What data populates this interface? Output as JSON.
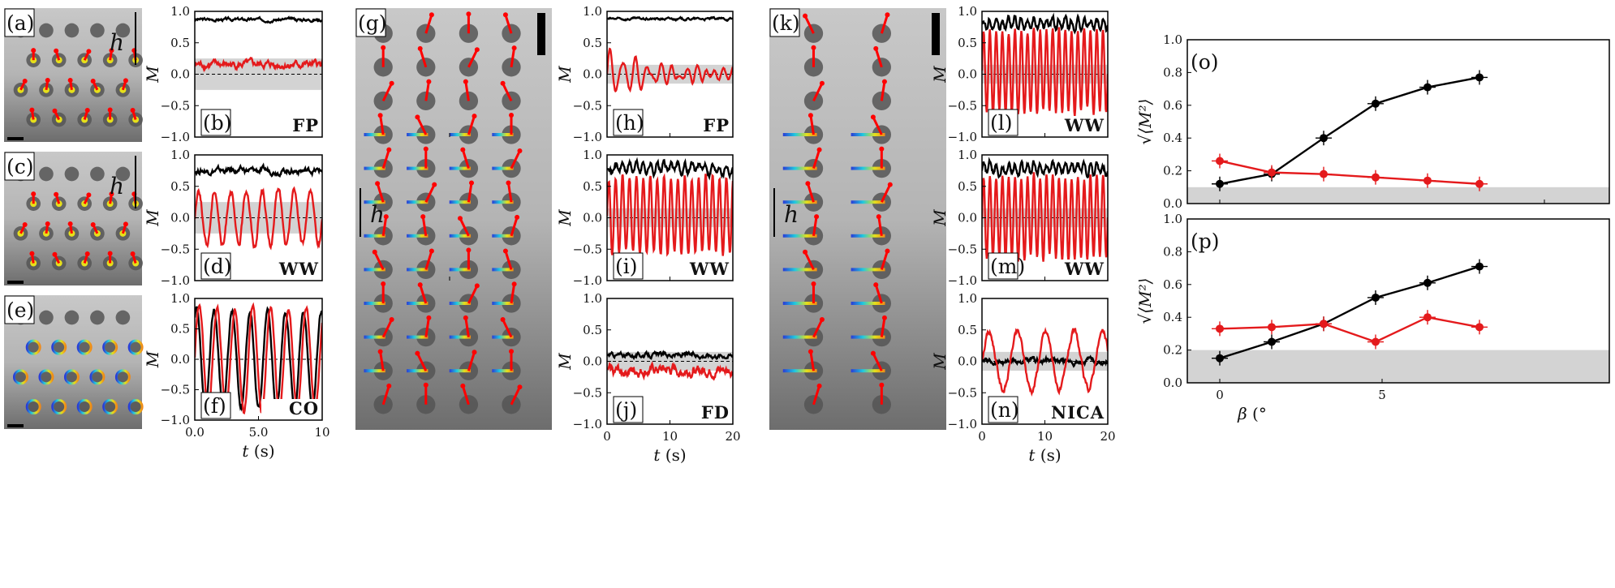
{
  "photos": [
    {
      "label": "(a)",
      "rows": 4,
      "cols": 5,
      "dots": true,
      "hlabel": "h",
      "overlay": "small"
    },
    {
      "label": "(c)",
      "rows": 4,
      "cols": 5,
      "dots": true,
      "hlabel": "h",
      "overlay": "small"
    },
    {
      "label": "(e)",
      "rows": 4,
      "cols": 5,
      "dots": true,
      "hlabel": "",
      "overlay": "ring"
    },
    {
      "label": "(g)",
      "rows": 12,
      "cols": 4,
      "dots": false,
      "hlabel": "h",
      "overlay": "trail"
    },
    {
      "label": "(k)",
      "rows": 12,
      "cols": 2,
      "dots": false,
      "hlabel": "h",
      "overlay": "trail"
    }
  ],
  "colors": {
    "ordered": "#000000",
    "oscillating": "#e41a1c",
    "band": "#d3d3d3"
  },
  "chart_data": [
    {
      "id": "b",
      "type": "line",
      "tag": "(b)",
      "mode": "FP",
      "xlim": [
        0,
        10
      ],
      "ylim": [
        -1,
        1
      ],
      "xticks": [],
      "yticks": [
        "1.0",
        "0.5",
        "0.0",
        "−0.5",
        "−1.0"
      ],
      "ylabel": "M",
      "xlabel": "",
      "band": 0.25,
      "series": [
        {
          "color": "black",
          "kind": "noise",
          "mean": 0.87,
          "amp": 0.05
        },
        {
          "color": "red",
          "kind": "noise",
          "mean": 0.15,
          "amp": 0.12
        }
      ]
    },
    {
      "id": "d",
      "type": "line",
      "tag": "(d)",
      "mode": "WW",
      "xlim": [
        0,
        10
      ],
      "ylim": [
        -1,
        1
      ],
      "xticks": [],
      "yticks": [
        "1.0",
        "0.5",
        "0.0",
        "−0.5",
        "−1.0"
      ],
      "ylabel": "M",
      "xlabel": "",
      "band": 0.25,
      "series": [
        {
          "color": "black",
          "kind": "noise",
          "mean": 0.75,
          "amp": 0.1
        },
        {
          "color": "red",
          "kind": "osc",
          "mean": 0.0,
          "amp": 0.45,
          "period": 1.25
        }
      ]
    },
    {
      "id": "f",
      "type": "line",
      "tag": "(f)",
      "mode": "CO",
      "xlim": [
        0,
        10
      ],
      "ylim": [
        -1,
        1
      ],
      "xticks": [
        "0.0",
        "5.0",
        "10"
      ],
      "yticks": [
        "1.0",
        "0.5",
        "0.0",
        "−0.5",
        "−1.0"
      ],
      "ylabel": "M",
      "xlabel": "t",
      "band": 0,
      "series": [
        {
          "color": "black",
          "kind": "osc",
          "mean": 0.0,
          "amp": 0.8,
          "period": 1.4,
          "phase": 1.0
        },
        {
          "color": "red",
          "kind": "osc",
          "mean": 0.0,
          "amp": 0.85,
          "period": 1.4,
          "phase": 0.0
        }
      ]
    },
    {
      "id": "h",
      "type": "line",
      "tag": "(h)",
      "mode": "FP",
      "xlim": [
        0,
        20
      ],
      "ylim": [
        -1,
        1
      ],
      "xticks": [],
      "yticks": [
        "1.0",
        "0.5",
        "0.0",
        "−0.5",
        "−1.0"
      ],
      "ylabel": "M",
      "xlabel": "",
      "band": 0.15,
      "series": [
        {
          "color": "black",
          "kind": "noise",
          "mean": 0.88,
          "amp": 0.04
        },
        {
          "color": "red",
          "kind": "decay",
          "mean": 0.0,
          "amp": 0.35,
          "period": 2.0
        }
      ]
    },
    {
      "id": "i",
      "type": "line",
      "tag": "(i)",
      "mode": "WW",
      "xlim": [
        0,
        20
      ],
      "ylim": [
        -1,
        1
      ],
      "xticks": [],
      "yticks": [
        "1.0",
        "0.5",
        "0.0",
        "−0.5",
        "−1.0"
      ],
      "ylabel": "M",
      "xlabel": "",
      "band": 0.15,
      "series": [
        {
          "color": "black",
          "kind": "osc",
          "mean": 0.8,
          "amp": 0.07,
          "period": 1.1
        },
        {
          "color": "red",
          "kind": "osc",
          "mean": 0.05,
          "amp": 0.6,
          "period": 1.1
        }
      ]
    },
    {
      "id": "j",
      "type": "line",
      "tag": "(j)",
      "mode": "FD",
      "xlim": [
        0,
        20
      ],
      "ylim": [
        -1,
        1
      ],
      "xticks": [
        "0",
        "10",
        "20"
      ],
      "yticks": [
        "1.0",
        "0.5",
        "0.0",
        "−0.5",
        "−1.0"
      ],
      "ylabel": "M",
      "xlabel": "t",
      "band": 0.15,
      "series": [
        {
          "color": "black",
          "kind": "noise",
          "mean": 0.1,
          "amp": 0.08
        },
        {
          "color": "red",
          "kind": "noise",
          "mean": -0.15,
          "amp": 0.18
        }
      ]
    },
    {
      "id": "l",
      "type": "line",
      "tag": "(l)",
      "mode": "WW",
      "xlim": [
        0,
        20
      ],
      "ylim": [
        -1,
        1
      ],
      "xticks": [],
      "yticks": [
        "1.0",
        "0.5",
        "0.0",
        "−0.5",
        "−1.0"
      ],
      "ylabel": "M",
      "xlabel": "",
      "band": 0.15,
      "series": [
        {
          "color": "black",
          "kind": "osc",
          "mean": 0.8,
          "amp": 0.08,
          "period": 1.0
        },
        {
          "color": "red",
          "kind": "osc",
          "mean": 0.05,
          "amp": 0.65,
          "period": 1.0
        }
      ]
    },
    {
      "id": "m",
      "type": "line",
      "tag": "(m)",
      "mode": "WW",
      "xlim": [
        0,
        20
      ],
      "ylim": [
        -1,
        1
      ],
      "xticks": [],
      "yticks": [
        "1.0",
        "0.5",
        "0.0",
        "−0.5",
        "−1.0"
      ],
      "ylabel": "M",
      "xlabel": "",
      "band": 0.15,
      "series": [
        {
          "color": "black",
          "kind": "osc",
          "mean": 0.78,
          "amp": 0.08,
          "period": 1.0
        },
        {
          "color": "red",
          "kind": "osc",
          "mean": 0.0,
          "amp": 0.65,
          "period": 1.0
        }
      ]
    },
    {
      "id": "n",
      "type": "line",
      "tag": "(n)",
      "mode": "NICA",
      "xlim": [
        0,
        20
      ],
      "ylim": [
        -1,
        1
      ],
      "xticks": [
        "0",
        "10",
        "20"
      ],
      "yticks": [
        "1.0",
        "0.5",
        "0.0",
        "−0.5",
        "−1.0"
      ],
      "ylabel": "M",
      "xlabel": "t",
      "band": 0.15,
      "series": [
        {
          "color": "black",
          "kind": "noise",
          "mean": 0.0,
          "amp": 0.1
        },
        {
          "color": "red",
          "kind": "osc",
          "mean": 0.0,
          "amp": 0.45,
          "period": 4.5
        }
      ]
    },
    {
      "id": "o",
      "type": "line",
      "tag": "(o)",
      "mode": "",
      "xlim": [
        -1,
        12
      ],
      "ylim": [
        0,
        1
      ],
      "xticks": [],
      "yticks": [
        "1.0",
        "0.8",
        "0.6",
        "0.4",
        "0.2",
        "0.0"
      ],
      "ylabel": "√⟨M²⟩",
      "xlabel": "",
      "band": 0.1,
      "series": [
        {
          "color": "black",
          "x": [
            0,
            1.6,
            3.2,
            4.8,
            6.4,
            8
          ],
          "y": [
            0.12,
            0.18,
            0.4,
            0.61,
            0.71,
            0.77
          ]
        },
        {
          "color": "red",
          "x": [
            0,
            1.6,
            3.2,
            4.8,
            6.4,
            8
          ],
          "y": [
            0.26,
            0.19,
            0.18,
            0.16,
            0.14,
            0.12
          ]
        }
      ]
    },
    {
      "id": "p",
      "type": "line",
      "tag": "(p)",
      "mode": "",
      "xlim": [
        -1,
        12
      ],
      "ylim": [
        0,
        1
      ],
      "xticks": [
        "0",
        "5"
      ],
      "yticks": [
        "1.0",
        "0.8",
        "0.6",
        "0.4",
        "0.2",
        "0.0"
      ],
      "ylabel": "√⟨M²⟩",
      "xlabel": "β (°",
      "band": 0.2,
      "series": [
        {
          "color": "black",
          "x": [
            0,
            1.6,
            3.2,
            4.8,
            6.4,
            8
          ],
          "y": [
            0.15,
            0.25,
            0.36,
            0.52,
            0.61,
            0.71
          ]
        },
        {
          "color": "red",
          "x": [
            0,
            1.6,
            3.2,
            4.8,
            6.4,
            8
          ],
          "y": [
            0.33,
            0.34,
            0.36,
            0.25,
            0.4,
            0.34
          ]
        }
      ]
    }
  ]
}
